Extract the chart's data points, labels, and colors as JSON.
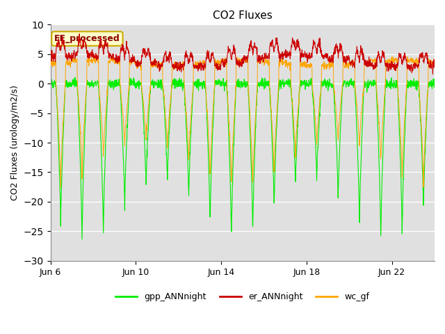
{
  "title": "CO2 Fluxes",
  "ylabel": "CO2 Fluxes (urology/m2/s)",
  "ylim": [
    -30,
    10
  ],
  "yticks": [
    -30,
    -25,
    -20,
    -15,
    -10,
    -5,
    0,
    5,
    10
  ],
  "xlabel_dates": [
    "Jun 6",
    "Jun 10",
    "Jun 14",
    "Jun 18",
    "Jun 22"
  ],
  "xtick_positions": [
    0,
    4,
    8,
    12,
    16
  ],
  "xlim": [
    0,
    18
  ],
  "annotation": "EE_processed",
  "annotation_color": "#8B0000",
  "annotation_bg": "#ffffcc",
  "annotation_edge": "#ccaa00",
  "bg_color": "#e0e0e0",
  "fig_color": "#ffffff",
  "line_colors": {
    "gpp": "#00ee00",
    "er": "#cc0000",
    "wc": "#ffa500"
  },
  "legend_labels": [
    "gpp_ANNnight",
    "er_ANNnight",
    "wc_gf"
  ],
  "n_days": 18,
  "points_per_day": 96,
  "figsize": [
    6.4,
    4.8
  ],
  "dpi": 100
}
